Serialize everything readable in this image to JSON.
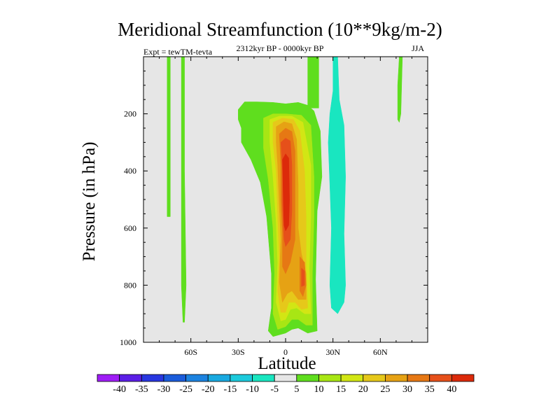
{
  "chart_data": {
    "type": "contour",
    "title": "Meridional Streamfunction (10**9kg/m-2)",
    "subtitle": "2312kyr BP - 0000kyr BP",
    "left_label": "Expt = tewTM-tevta",
    "right_label": "JJA",
    "xlabel": "Latitude",
    "ylabel": "Pressure (in hPa)",
    "xlim": [
      -90,
      90
    ],
    "ylim": [
      1000,
      0
    ],
    "x_ticks": [
      {
        "value": -60,
        "label": "60S"
      },
      {
        "value": -30,
        "label": "30S"
      },
      {
        "value": 0,
        "label": "0"
      },
      {
        "value": 30,
        "label": "30N"
      },
      {
        "value": 60,
        "label": "60N"
      }
    ],
    "y_ticks": [
      {
        "value": 200,
        "label": "200"
      },
      {
        "value": 400,
        "label": "400"
      },
      {
        "value": 600,
        "label": "600"
      },
      {
        "value": 800,
        "label": "800"
      },
      {
        "value": 1000,
        "label": "1000"
      }
    ],
    "background_color": "#e6e6e6",
    "colorbar": {
      "labels": [
        "-40",
        "-35",
        "-30",
        "-25",
        "-20",
        "-15",
        "-10",
        "-5",
        "5",
        "10",
        "15",
        "20",
        "25",
        "30",
        "35",
        "40"
      ],
      "colors": [
        "#9f1df6",
        "#5b1ee6",
        "#2837e0",
        "#1a5cdb",
        "#1c83e0",
        "#19a9e0",
        "#1ccadc",
        "#19e6c0",
        "#e6e6e6",
        "#5fde1e",
        "#a8e614",
        "#d2e614",
        "#e6c81a",
        "#e6a214",
        "#e67814",
        "#e6501a",
        "#dc2a0a"
      ]
    },
    "contours": [
      {
        "level": 5,
        "color": "#5fde1e",
        "lon": 0.0,
        "lat": 0.0,
        "polygon": [
          [
            -18,
            158
          ],
          [
            -8,
            160
          ],
          [
            0,
            165
          ],
          [
            8,
            160
          ],
          [
            14,
            170
          ],
          [
            18,
            190
          ],
          [
            22,
            260
          ],
          [
            23,
            420
          ],
          [
            20,
            540
          ],
          [
            19,
            780
          ],
          [
            20,
            960
          ],
          [
            14,
            968
          ],
          [
            8,
            950
          ],
          [
            4,
            955
          ],
          [
            0,
            968
          ],
          [
            -8,
            980
          ],
          [
            -11,
            960
          ],
          [
            -9,
            880
          ],
          [
            -9,
            760
          ],
          [
            -12,
            560
          ],
          [
            -16,
            440
          ],
          [
            -22,
            360
          ],
          [
            -28,
            300
          ],
          [
            -28,
            250
          ],
          [
            -30,
            220
          ],
          [
            -30,
            185
          ],
          [
            -26,
            158
          ]
        ]
      },
      {
        "level": 5,
        "color": "#5fde1e",
        "polygon": [
          [
            14,
            0
          ],
          [
            21,
            0
          ],
          [
            21,
            180
          ],
          [
            14,
            180
          ]
        ]
      },
      {
        "level": 5,
        "color": "#5fde1e",
        "polygon": [
          [
            -75,
            0
          ],
          [
            -73,
            0
          ],
          [
            -73,
            560
          ],
          [
            -75,
            560
          ]
        ]
      },
      {
        "level": 5,
        "color": "#5fde1e",
        "polygon": [
          [
            -66,
            0
          ],
          [
            -64,
            0
          ],
          [
            -64,
            400
          ],
          [
            -63,
            800
          ],
          [
            -64,
            930
          ],
          [
            -65,
            930
          ],
          [
            -66,
            800
          ]
        ]
      },
      {
        "level": 5,
        "color": "#5fde1e",
        "polygon": [
          [
            72,
            0
          ],
          [
            74,
            0
          ],
          [
            73,
            200
          ],
          [
            72,
            230
          ],
          [
            71,
            220
          ],
          [
            71,
            100
          ]
        ]
      },
      {
        "level": 10,
        "color": "#a8e614",
        "polygon": [
          [
            -14,
            215
          ],
          [
            -8,
            200
          ],
          [
            0,
            200
          ],
          [
            10,
            205
          ],
          [
            16,
            240
          ],
          [
            18,
            420
          ],
          [
            18,
            560
          ],
          [
            17,
            760
          ],
          [
            17,
            940
          ],
          [
            13,
            940
          ],
          [
            8,
            920
          ],
          [
            4,
            920
          ],
          [
            0,
            945
          ],
          [
            -5,
            955
          ],
          [
            -8,
            900
          ],
          [
            -7,
            760
          ],
          [
            -8,
            600
          ],
          [
            -11,
            430
          ],
          [
            -14,
            320
          ]
        ]
      },
      {
        "level": 15,
        "color": "#d2e614",
        "polygon": [
          [
            -10,
            220
          ],
          [
            -4,
            208
          ],
          [
            4,
            208
          ],
          [
            11,
            230
          ],
          [
            16,
            380
          ],
          [
            16,
            560
          ],
          [
            15,
            740
          ],
          [
            16,
            900
          ],
          [
            12,
            900
          ],
          [
            7,
            880
          ],
          [
            3,
            885
          ],
          [
            0,
            920
          ],
          [
            -3,
            925
          ],
          [
            -6,
            860
          ],
          [
            -5,
            720
          ],
          [
            -6,
            580
          ],
          [
            -8,
            420
          ],
          [
            -10,
            300
          ]
        ]
      },
      {
        "level": 20,
        "color": "#e6c81a",
        "polygon": [
          [
            -8,
            230
          ],
          [
            -2,
            215
          ],
          [
            5,
            220
          ],
          [
            9,
            260
          ],
          [
            12,
            400
          ],
          [
            13,
            560
          ],
          [
            13,
            740
          ],
          [
            14,
            880
          ],
          [
            10,
            885
          ],
          [
            6,
            860
          ],
          [
            2,
            860
          ],
          [
            0,
            895
          ],
          [
            -3,
            895
          ],
          [
            -5,
            820
          ],
          [
            -4,
            700
          ],
          [
            -5,
            560
          ],
          [
            -6,
            400
          ],
          [
            -8,
            300
          ]
        ]
      },
      {
        "level": 25,
        "color": "#e6a214",
        "polygon": [
          [
            -6,
            245
          ],
          [
            -1,
            228
          ],
          [
            4,
            235
          ],
          [
            7,
            290
          ],
          [
            8,
            450
          ],
          [
            8,
            600
          ],
          [
            10,
            690
          ],
          [
            13,
            760
          ],
          [
            13,
            850
          ],
          [
            8,
            850
          ],
          [
            4,
            820
          ],
          [
            1,
            830
          ],
          [
            -2,
            860
          ],
          [
            -4,
            790
          ],
          [
            -3,
            640
          ],
          [
            -4,
            520
          ],
          [
            -5,
            380
          ],
          [
            -6,
            300
          ]
        ]
      },
      {
        "level": 30,
        "color": "#e67814",
        "polygon": [
          [
            -4,
            270
          ],
          [
            0,
            250
          ],
          [
            4,
            262
          ],
          [
            6,
            330
          ],
          [
            6,
            500
          ],
          [
            6,
            640
          ],
          [
            3,
            720
          ],
          [
            0,
            760
          ],
          [
            -2,
            735
          ],
          [
            -2,
            620
          ],
          [
            -3,
            500
          ],
          [
            -3,
            380
          ]
        ]
      },
      {
        "level": 30,
        "color": "#e67814",
        "polygon": [
          [
            9,
            700
          ],
          [
            12,
            720
          ],
          [
            13,
            800
          ],
          [
            11,
            840
          ],
          [
            9,
            820
          ]
        ]
      },
      {
        "level": 35,
        "color": "#e6501a",
        "polygon": [
          [
            -3,
            300
          ],
          [
            0,
            285
          ],
          [
            3,
            295
          ],
          [
            4,
            380
          ],
          [
            4,
            540
          ],
          [
            3,
            640
          ],
          [
            0,
            665
          ],
          [
            -1,
            640
          ],
          [
            -2,
            520
          ],
          [
            -2,
            400
          ]
        ]
      },
      {
        "level": 35,
        "color": "#e6501a",
        "polygon": [
          [
            10,
            740
          ],
          [
            12,
            750
          ],
          [
            12,
            800
          ],
          [
            10,
            805
          ]
        ]
      },
      {
        "level": 40,
        "color": "#dc2a0a",
        "polygon": [
          [
            -2,
            360
          ],
          [
            0,
            340
          ],
          [
            2,
            355
          ],
          [
            2.5,
            500
          ],
          [
            2,
            590
          ],
          [
            0,
            610
          ],
          [
            -1,
            590
          ],
          [
            -1.5,
            480
          ]
        ]
      },
      {
        "level": -5,
        "color": "#19e6c0",
        "polygon": [
          [
            30,
            0
          ],
          [
            33,
            0
          ],
          [
            34,
            150
          ],
          [
            37,
            240
          ],
          [
            38,
            420
          ],
          [
            37,
            620
          ],
          [
            38,
            800
          ],
          [
            37,
            860
          ],
          [
            33,
            900
          ],
          [
            29,
            880
          ],
          [
            28,
            800
          ],
          [
            29,
            600
          ],
          [
            28,
            450
          ],
          [
            27,
            300
          ],
          [
            28,
            200
          ],
          [
            30,
            120
          ]
        ]
      }
    ]
  }
}
